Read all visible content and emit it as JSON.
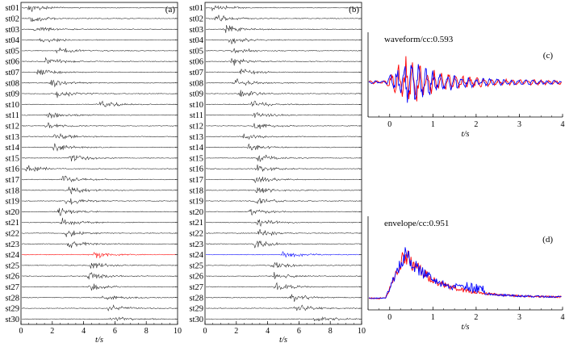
{
  "panels": {
    "a": {
      "tag": "(a)",
      "stations": [
        "st01",
        "st02",
        "st03",
        "st04",
        "st05",
        "st06",
        "st07",
        "st08",
        "st09",
        "st10",
        "st11",
        "st12",
        "st13",
        "st14",
        "st15",
        "st16",
        "st17",
        "st18",
        "st19",
        "st20",
        "st21",
        "st22",
        "st23",
        "st24",
        "st25",
        "st26",
        "st27",
        "st28",
        "st29",
        "st30"
      ],
      "arrivals": [
        0.4,
        0.5,
        0.8,
        1.2,
        2.2,
        1.5,
        1.0,
        1.8,
        2.2,
        5.0,
        1.6,
        1.5,
        2.1,
        2.0,
        3.0,
        0.2,
        2.5,
        3.0,
        2.8,
        2.3,
        2.5,
        2.8,
        2.9,
        4.5,
        4.3,
        4.2,
        4.3,
        5.2,
        5.5,
        5.6
      ],
      "highlight_index": 23,
      "highlight_color": "#ff0000",
      "x_ticks": [
        "0",
        "2",
        "4",
        "6",
        "8",
        "10"
      ],
      "x_label": "t/s",
      "x_range": [
        0,
        10
      ]
    },
    "b": {
      "tag": "(b)",
      "stations": [
        "st01",
        "st02",
        "st03",
        "st04",
        "st05",
        "st06",
        "st07",
        "st08",
        "st09",
        "st10",
        "st11",
        "st12",
        "st13",
        "st14",
        "st15",
        "st16",
        "st17",
        "st18",
        "st19",
        "st20",
        "st21",
        "st22",
        "st23",
        "st24",
        "st25",
        "st26",
        "st27",
        "st28",
        "st29",
        "st30"
      ],
      "arrivals": [
        0.4,
        0.6,
        1.2,
        1.5,
        1.7,
        1.6,
        2.2,
        1.8,
        2.1,
        2.9,
        3.0,
        3.0,
        2.4,
        2.7,
        3.3,
        3.2,
        3.1,
        3.2,
        3.1,
        2.8,
        3.3,
        3.3,
        3.1,
        4.9,
        4.2,
        4.3,
        4.4,
        5.4,
        5.7,
        6.9
      ],
      "highlight_index": 23,
      "highlight_color": "#0000ff",
      "x_ticks": [
        "0",
        "2",
        "4",
        "6",
        "8",
        "10"
      ],
      "x_label": "t/s",
      "x_range": [
        0,
        10
      ]
    },
    "c": {
      "tag": "(c)",
      "title": "waveform/cc:0.593",
      "x_ticks": [
        "0",
        "1",
        "2",
        "3",
        "4"
      ],
      "x_label": "t/s",
      "x_range": [
        -0.5,
        4
      ],
      "series_colors": [
        "#ff0000",
        "#0000ff"
      ]
    },
    "d": {
      "tag": "(d)",
      "title": "envelope/cc:0.951",
      "x_ticks": [
        "0",
        "1",
        "2",
        "3",
        "4"
      ],
      "x_label": "t/s",
      "x_range": [
        -0.5,
        4
      ],
      "series_colors": [
        "#ff0000",
        "#0000ff"
      ]
    }
  },
  "chart_data": [
    {
      "type": "line",
      "title": "(a)",
      "xlabel": "t/s",
      "xlim": [
        0,
        10
      ],
      "x_ticks": [
        0,
        2,
        4,
        6,
        8,
        10
      ],
      "categories": [
        "st01",
        "st02",
        "st03",
        "st04",
        "st05",
        "st06",
        "st07",
        "st08",
        "st09",
        "st10",
        "st11",
        "st12",
        "st13",
        "st14",
        "st15",
        "st16",
        "st17",
        "st18",
        "st19",
        "st20",
        "st21",
        "st22",
        "st23",
        "st24",
        "st25",
        "st26",
        "st27",
        "st28",
        "st29",
        "st30"
      ],
      "highlight": {
        "station": "st24",
        "color": "#ff0000"
      }
    },
    {
      "type": "line",
      "title": "(b)",
      "xlabel": "t/s",
      "xlim": [
        0,
        10
      ],
      "x_ticks": [
        0,
        2,
        4,
        6,
        8,
        10
      ],
      "categories": [
        "st01",
        "st02",
        "st03",
        "st04",
        "st05",
        "st06",
        "st07",
        "st08",
        "st09",
        "st10",
        "st11",
        "st12",
        "st13",
        "st14",
        "st15",
        "st16",
        "st17",
        "st18",
        "st19",
        "st20",
        "st21",
        "st22",
        "st23",
        "st24",
        "st25",
        "st26",
        "st27",
        "st28",
        "st29",
        "st30"
      ],
      "highlight": {
        "station": "st24",
        "color": "#0000ff"
      }
    },
    {
      "type": "line",
      "title": "waveform/cc:0.593",
      "xlabel": "t/s",
      "xlim": [
        -0.5,
        4
      ],
      "x_ticks": [
        0,
        1,
        2,
        3,
        4
      ],
      "series_colors": [
        "#ff0000",
        "#0000ff"
      ]
    },
    {
      "type": "line",
      "title": "envelope/cc:0.951",
      "xlabel": "t/s",
      "xlim": [
        -0.5,
        4
      ],
      "x_ticks": [
        0,
        1,
        2,
        3,
        4
      ],
      "series_colors": [
        "#ff0000",
        "#0000ff"
      ]
    }
  ]
}
